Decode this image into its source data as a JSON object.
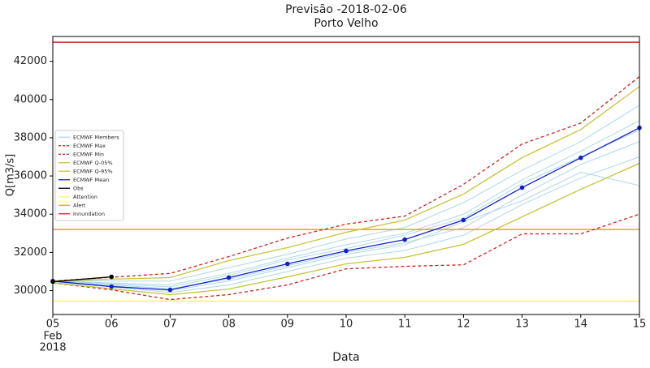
{
  "chart_data": {
    "type": "line",
    "title": "Previsão -2018-02-06",
    "subtitle": "Porto Velho",
    "xlabel": "Data",
    "ylabel": "Q[m3/s]",
    "x": [
      5,
      6,
      7,
      8,
      9,
      10,
      11,
      12,
      13,
      14,
      15
    ],
    "xlim": [
      5,
      15
    ],
    "xticks": [
      {
        "value": 5,
        "label": "05"
      },
      {
        "value": 6,
        "label": "06"
      },
      {
        "value": 7,
        "label": "07"
      },
      {
        "value": 8,
        "label": "08"
      },
      {
        "value": 9,
        "label": "09"
      },
      10,
      11,
      12,
      13,
      14,
      15
    ],
    "x_tick_sublabels": [
      "Feb",
      "2018"
    ],
    "ylim": [
      28750,
      43300
    ],
    "yticks": [
      30000,
      32000,
      34000,
      36000,
      38000,
      40000,
      42000
    ],
    "grid": false,
    "legend": "center left",
    "series": [
      {
        "name": "ECMWF Members",
        "color": "#add8e6",
        "members": [
          [
            30500,
            30400,
            30300,
            30900,
            31700,
            32400,
            33000,
            34000,
            35800,
            37300,
            38900
          ],
          [
            30450,
            30300,
            30100,
            30600,
            31300,
            32000,
            32500,
            33300,
            35000,
            36600,
            37800
          ],
          [
            30500,
            30500,
            30500,
            31200,
            31900,
            32700,
            33300,
            34600,
            36300,
            37800,
            39700
          ],
          [
            30450,
            30200,
            29900,
            30300,
            31000,
            31700,
            32100,
            32900,
            34500,
            35900,
            37000
          ],
          [
            30500,
            30350,
            30200,
            30800,
            31600,
            32200,
            32900,
            33800,
            35600,
            37000,
            38400
          ],
          [
            30400,
            30250,
            30000,
            30500,
            31200,
            31900,
            32400,
            33600,
            34700,
            36200,
            35500
          ]
        ]
      },
      {
        "name": "ECMWF Max",
        "color": "#cc2222",
        "dash": true,
        "values": [
          30500,
          30700,
          30900,
          31780,
          32750,
          33480,
          33900,
          35560,
          37670,
          38770,
          41200
        ]
      },
      {
        "name": "ECMWF Min",
        "color": "#cc2222",
        "dash": true,
        "values": [
          30400,
          30040,
          29530,
          29790,
          30300,
          31140,
          31270,
          31350,
          32970,
          32970,
          34000
        ]
      },
      {
        "name": "ECMWF Q-05%",
        "color": "#c4c43a",
        "values": [
          30400,
          30100,
          29790,
          30080,
          30720,
          31400,
          31740,
          32420,
          33860,
          35300,
          36660
        ]
      },
      {
        "name": "ECMWF Q-95%",
        "color": "#c4c43a",
        "values": [
          30500,
          30600,
          30680,
          31570,
          32250,
          33050,
          33690,
          35050,
          36960,
          38430,
          40680
        ]
      },
      {
        "name": "ECMWF Mean",
        "color": "#1020c8",
        "marker": true,
        "values": [
          30500,
          30210,
          30040,
          30680,
          31400,
          32080,
          32670,
          33690,
          35390,
          36950,
          38520
        ]
      },
      {
        "name": "Obs",
        "color": "#000000",
        "marker": true,
        "values": [
          30470,
          30720,
          null,
          null,
          null,
          null,
          null,
          null,
          null,
          null,
          null
        ]
      }
    ],
    "levels": [
      {
        "name": "Attention",
        "color": "#f5f56a",
        "value": 29450
      },
      {
        "name": "Alert",
        "color": "#e6a800",
        "value": 33200
      },
      {
        "name": "Innundation",
        "color": "#cc2222",
        "value": 43000
      }
    ]
  }
}
